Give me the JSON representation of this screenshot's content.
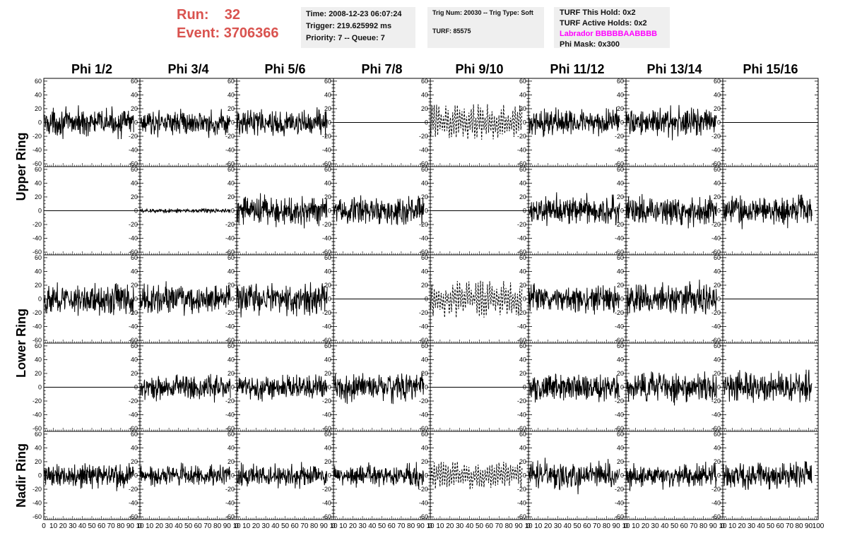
{
  "run": {
    "run_label": "Run:",
    "run_value": "32",
    "event_label": "Event:",
    "event_value": "3706366"
  },
  "info_time": {
    "time": "Time: 2008-12-23 06:07:24",
    "trigger": "Trigger: 219.625992 ms",
    "priority": "Priority: 7 -- Queue: 7"
  },
  "info_trig": {
    "trig": "Trig Num: 20030 -- Trig Type: Soft",
    "turf": "TURF: 85575"
  },
  "info_turf": {
    "hold": "TURF This Hold: 0x2",
    "active": "TURF Active Holds: 0x2",
    "labrador": "Labrador BBBBBAABBBB",
    "labrador_color": "#ff00ff",
    "phi_mask": "Phi Mask: 0x300"
  },
  "chart_data": {
    "type": "line",
    "columns": [
      "Phi 1/2",
      "Phi 3/4",
      "Phi 5/6",
      "Phi 7/8",
      "Phi 9/10",
      "Phi 11/12",
      "Phi 13/14",
      "Phi 15/16"
    ],
    "ring_labels": [
      "Upper Ring",
      "Lower Ring",
      "Nadir Ring"
    ],
    "y_ticks": [
      "60",
      "40",
      "20",
      "0",
      "-20",
      "-40",
      "-60"
    ],
    "x_ticks": [
      "0",
      "10",
      "20",
      "30",
      "40",
      "50",
      "60",
      "70",
      "80",
      "90",
      "100"
    ],
    "x_tick_label_rows": [
      "0 10 20 30 40 50 60 70 80 90 10",
      "0 10 20 30 40 50 60 70 80 90 10",
      "0 10 20 30 40 50 60 70 80 90 10",
      "0 10 20 30 40 50 60 70 80 90 10",
      "0 10 20 30 40 50 60 70 80 90 10",
      "0 10 20 30 40 50 60 70 80 90 10",
      "0 10 20 30 40 50 60 70 80 90 10",
      "0 10 20 30 40 50 60 70 80 90 100"
    ],
    "xlim": [
      0,
      100
    ],
    "ylim": [
      -64,
      64
    ],
    "panel_style": [
      [
        "noise",
        "noise",
        "noise",
        "flat",
        "dashed",
        "noise",
        "noise",
        "flat"
      ],
      [
        "flat",
        "small",
        "noise",
        "noise",
        "flat",
        "noise",
        "noise",
        "noise"
      ],
      [
        "noise",
        "noise",
        "noise",
        "flat",
        "dashed",
        "noise",
        "noise",
        "flat"
      ],
      [
        "flat",
        "noise",
        "noise",
        "noise",
        "flat",
        "noise",
        "noise",
        "noise"
      ],
      [
        "noise",
        "noise",
        "noise",
        "noise",
        "dashed",
        "noise",
        "noise",
        "noise"
      ]
    ],
    "panel_amplitude": [
      [
        12,
        11,
        12,
        0,
        16,
        12,
        13,
        0
      ],
      [
        0,
        2,
        14,
        13,
        0,
        13,
        13,
        13
      ],
      [
        14,
        13,
        14,
        0,
        16,
        13,
        14,
        0
      ],
      [
        0,
        12,
        11,
        13,
        0,
        12,
        13,
        13
      ],
      [
        12,
        9,
        10,
        10,
        12,
        13,
        11,
        12
      ]
    ],
    "line_color": "#000000"
  }
}
